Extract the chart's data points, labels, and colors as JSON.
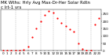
{
  "title": "MK Wths: Hrly Avg Max-Dr-Her Solar Rdtn",
  "subtitle": "c lrt-1 vrs",
  "hours": [
    0,
    1,
    2,
    3,
    4,
    5,
    6,
    7,
    8,
    9,
    10,
    11,
    12,
    13,
    14,
    15,
    16,
    17,
    18,
    19,
    20,
    21,
    22,
    23
  ],
  "values": [
    0,
    0,
    0,
    0,
    0,
    5,
    30,
    90,
    150,
    200,
    240,
    270,
    260,
    220,
    190,
    170,
    145,
    130,
    50,
    10,
    0,
    0,
    180,
    220
  ],
  "dot_color": "#ff0000",
  "bg_color": "#ffffff",
  "grid_color": "#888888",
  "tick_color": "#000000",
  "ylim": [
    0,
    280
  ],
  "ytick_values": [
    0,
    50,
    100,
    150,
    200,
    250
  ],
  "ytick_labels": [
    "0",
    "50",
    "100",
    "150",
    "200",
    "250"
  ],
  "vgrid_positions": [
    3,
    6,
    9,
    12,
    15,
    18,
    21
  ],
  "xlim": [
    -0.5,
    23.5
  ],
  "xtick_positions": [
    0,
    1,
    2,
    3,
    4,
    5,
    6,
    7,
    8,
    9,
    10,
    11,
    12,
    13,
    14,
    15,
    16,
    17,
    18,
    19,
    20,
    21,
    22,
    23
  ],
  "xtick_labels": [
    "0",
    "1",
    "2",
    "3",
    "4",
    "5",
    "6",
    "7",
    "8",
    "9",
    "10",
    "11",
    "12",
    "13",
    "14",
    "15",
    "16",
    "17",
    "18",
    "19",
    "20",
    "21",
    "22",
    "23"
  ],
  "title_fontsize": 4.0,
  "tick_fontsize": 3.0,
  "dot_size": 2.5,
  "line_width": 0.3
}
